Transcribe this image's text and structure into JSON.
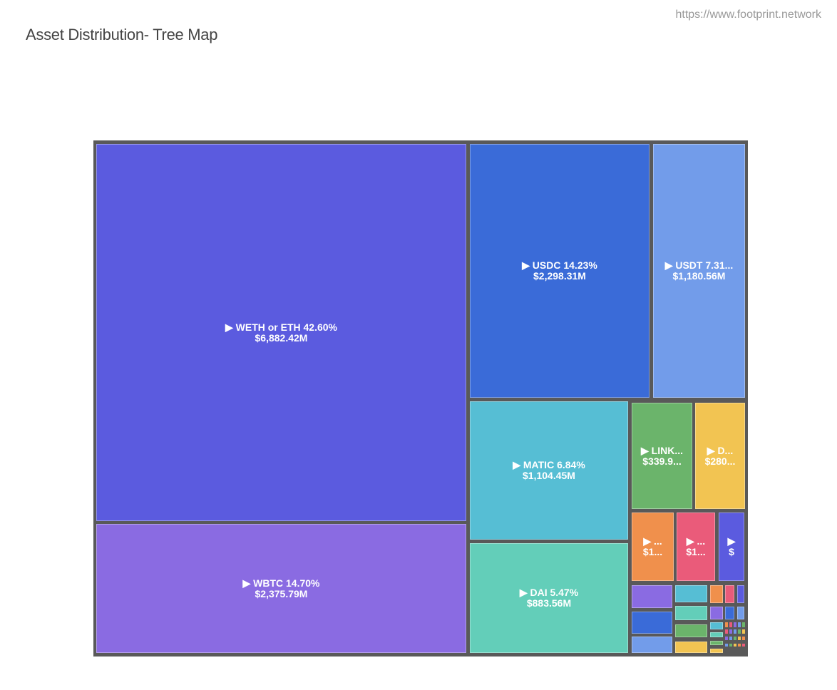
{
  "title": "Asset Distribution- Tree Map",
  "watermark": "https://www.footprint.network",
  "chart_data": {
    "type": "treemap",
    "title": "Asset Distribution- Tree Map",
    "items": [
      {
        "label": "▶ WETH or ETH 42.60%",
        "value": "$6,882.42M",
        "color": "#5b5bdf"
      },
      {
        "label": "▶ WBTC 14.70%",
        "value": "$2,375.79M",
        "color": "#8a6be2"
      },
      {
        "label": "▶ USDC 14.23%",
        "value": "$2,298.31M",
        "color": "#3a6bd8"
      },
      {
        "label": "▶ USDT 7.31...",
        "value": "$1,180.56M",
        "color": "#729cea"
      },
      {
        "label": "▶ MATIC 6.84%",
        "value": "$1,104.45M",
        "color": "#56bed4"
      },
      {
        "label": "▶ DAI 5.47%",
        "value": "$883.56M",
        "color": "#63ceb9"
      },
      {
        "label": "▶ LINK...",
        "value": "$339.9...",
        "color": "#6bb46b"
      },
      {
        "label": "▶ D...",
        "value": "$280...",
        "color": "#f2c452"
      },
      {
        "label": "▶ ...",
        "value": "$1...",
        "color": "#f0904c"
      },
      {
        "label": "▶ ...",
        "value": "$1...",
        "color": "#ea5b7a"
      },
      {
        "label": "▶",
        "value": "$",
        "color": "#5b5bdf"
      }
    ],
    "small_tile_colors": [
      "#8a6be2",
      "#3a6bd8",
      "#729cea",
      "#56bed4",
      "#63ceb9",
      "#6bb46b",
      "#f2c452",
      "#f0904c",
      "#8a6be2",
      "#56bed4",
      "#63ceb9",
      "#6bb46b",
      "#f2c452",
      "#ea5b7a",
      "#3a6bd8",
      "#5b5bdf",
      "#729cea"
    ]
  }
}
